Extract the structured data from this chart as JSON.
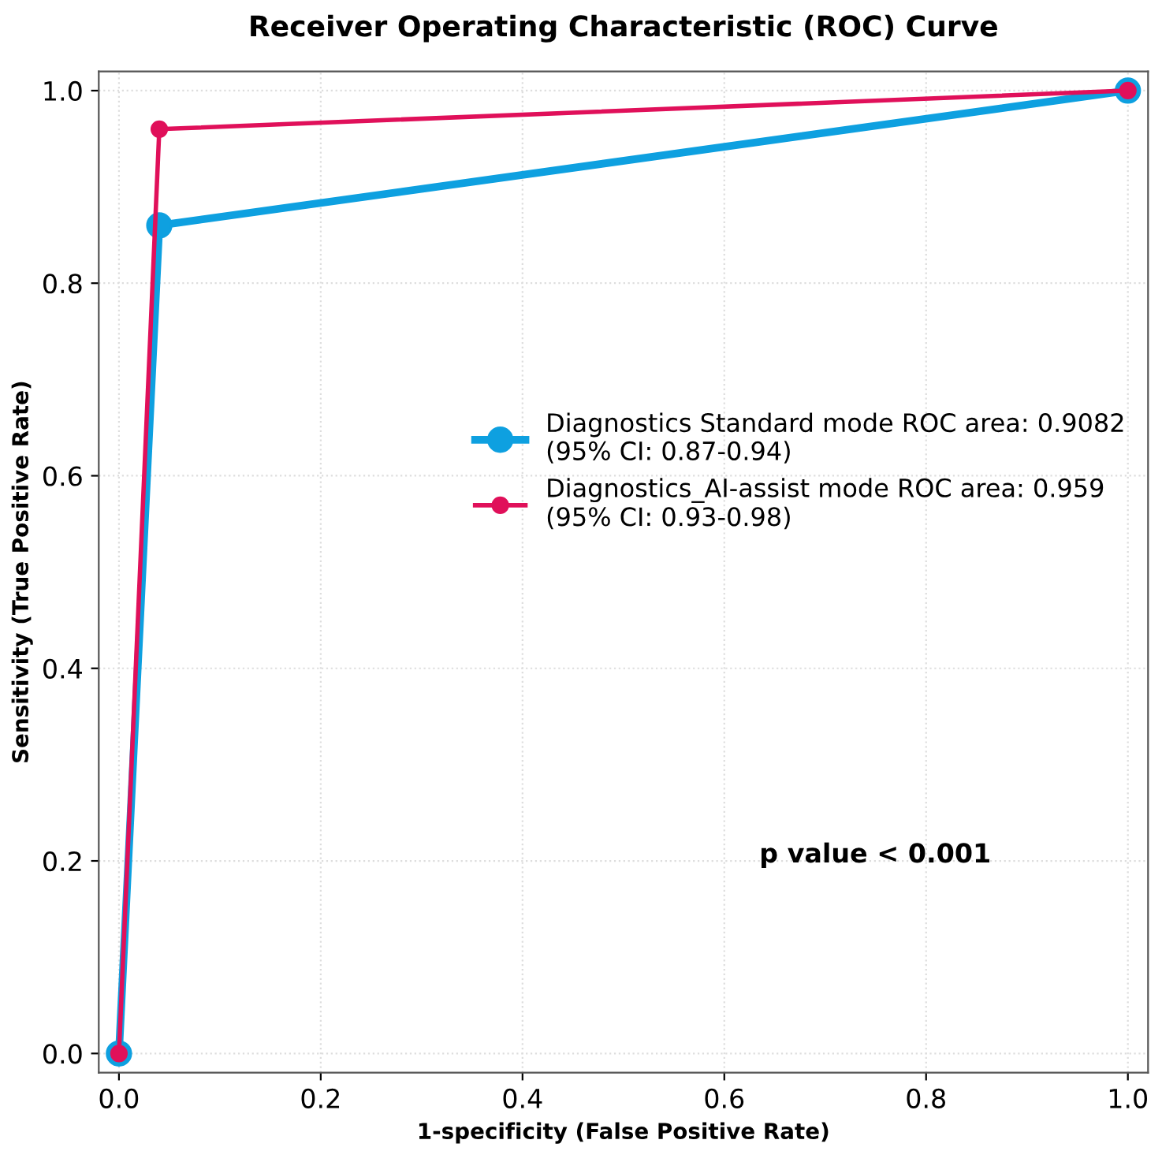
{
  "chart_data": {
    "type": "line",
    "title": "Receiver Operating Characteristic (ROC) Curve",
    "xlabel": "1-specificity (False Positive Rate)",
    "ylabel": "Sensitivity (True Positive Rate)",
    "series": [
      {
        "name": "Diagnostics Standard mode ROC area: 0.9082\n(95% CI: 0.87-0.94)",
        "color": "#0ea0e0",
        "x": [
          0,
          0.04,
          1
        ],
        "values": [
          0,
          0.86,
          1
        ]
      },
      {
        "name": "Diagnostics_AI-assist mode ROC area: 0.959\n(95% CI: 0.93-0.98)",
        "color": "#e0105a",
        "x": [
          0,
          0.04,
          1
        ],
        "values": [
          0,
          0.96,
          1
        ]
      }
    ],
    "xlim": [
      -0.02,
      1.02
    ],
    "ylim": [
      -0.02,
      1.02
    ],
    "xticks": [
      {
        "value": 0,
        "label": "0.0"
      },
      0.2,
      0.4,
      0.6,
      0.8,
      {
        "value": 1,
        "label": "1.0"
      }
    ],
    "yticks": [
      {
        "value": 0,
        "label": "0.0"
      },
      0.2,
      0.4,
      0.6,
      0.8,
      {
        "value": 1,
        "label": "1.0"
      }
    ],
    "annotations": [
      "p value < 0.001"
    ],
    "grid": true,
    "legend": "right",
    "marker": "circle",
    "line_style": "solid"
  }
}
